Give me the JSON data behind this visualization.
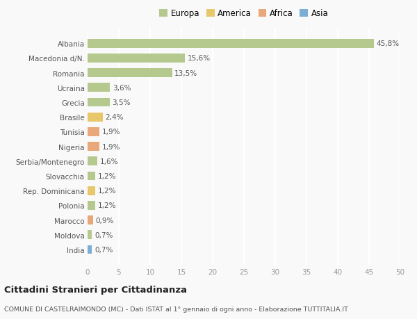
{
  "countries": [
    "Albania",
    "Macedonia d/N.",
    "Romania",
    "Ucraina",
    "Grecia",
    "Brasile",
    "Tunisia",
    "Nigeria",
    "Serbia/Montenegro",
    "Slovacchia",
    "Rep. Dominicana",
    "Polonia",
    "Marocco",
    "Moldova",
    "India"
  ],
  "values": [
    45.8,
    15.6,
    13.5,
    3.6,
    3.5,
    2.4,
    1.9,
    1.9,
    1.6,
    1.2,
    1.2,
    1.2,
    0.9,
    0.7,
    0.7
  ],
  "labels": [
    "45,8%",
    "15,6%",
    "13,5%",
    "3,6%",
    "3,5%",
    "2,4%",
    "1,9%",
    "1,9%",
    "1,6%",
    "1,2%",
    "1,2%",
    "1,2%",
    "0,9%",
    "0,7%",
    "0,7%"
  ],
  "continents": [
    "Europa",
    "Europa",
    "Europa",
    "Europa",
    "Europa",
    "America",
    "Africa",
    "Africa",
    "Europa",
    "Europa",
    "America",
    "Europa",
    "Africa",
    "Europa",
    "Asia"
  ],
  "colors": {
    "Europa": "#b5c98e",
    "America": "#e8c76a",
    "Africa": "#e8a87a",
    "Asia": "#7aaed4"
  },
  "title": "Cittadini Stranieri per Cittadinanza",
  "subtitle": "COMUNE DI CASTELRAIMONDO (MC) - Dati ISTAT al 1° gennaio di ogni anno - Elaborazione TUTTITALIA.IT",
  "xlim": [
    0,
    50
  ],
  "xticks": [
    0,
    5,
    10,
    15,
    20,
    25,
    30,
    35,
    40,
    45,
    50
  ],
  "background_color": "#f9f9f9",
  "grid_color": "#ffffff",
  "bar_height": 0.6,
  "legend_entries": [
    "Europa",
    "America",
    "Africa",
    "Asia"
  ]
}
